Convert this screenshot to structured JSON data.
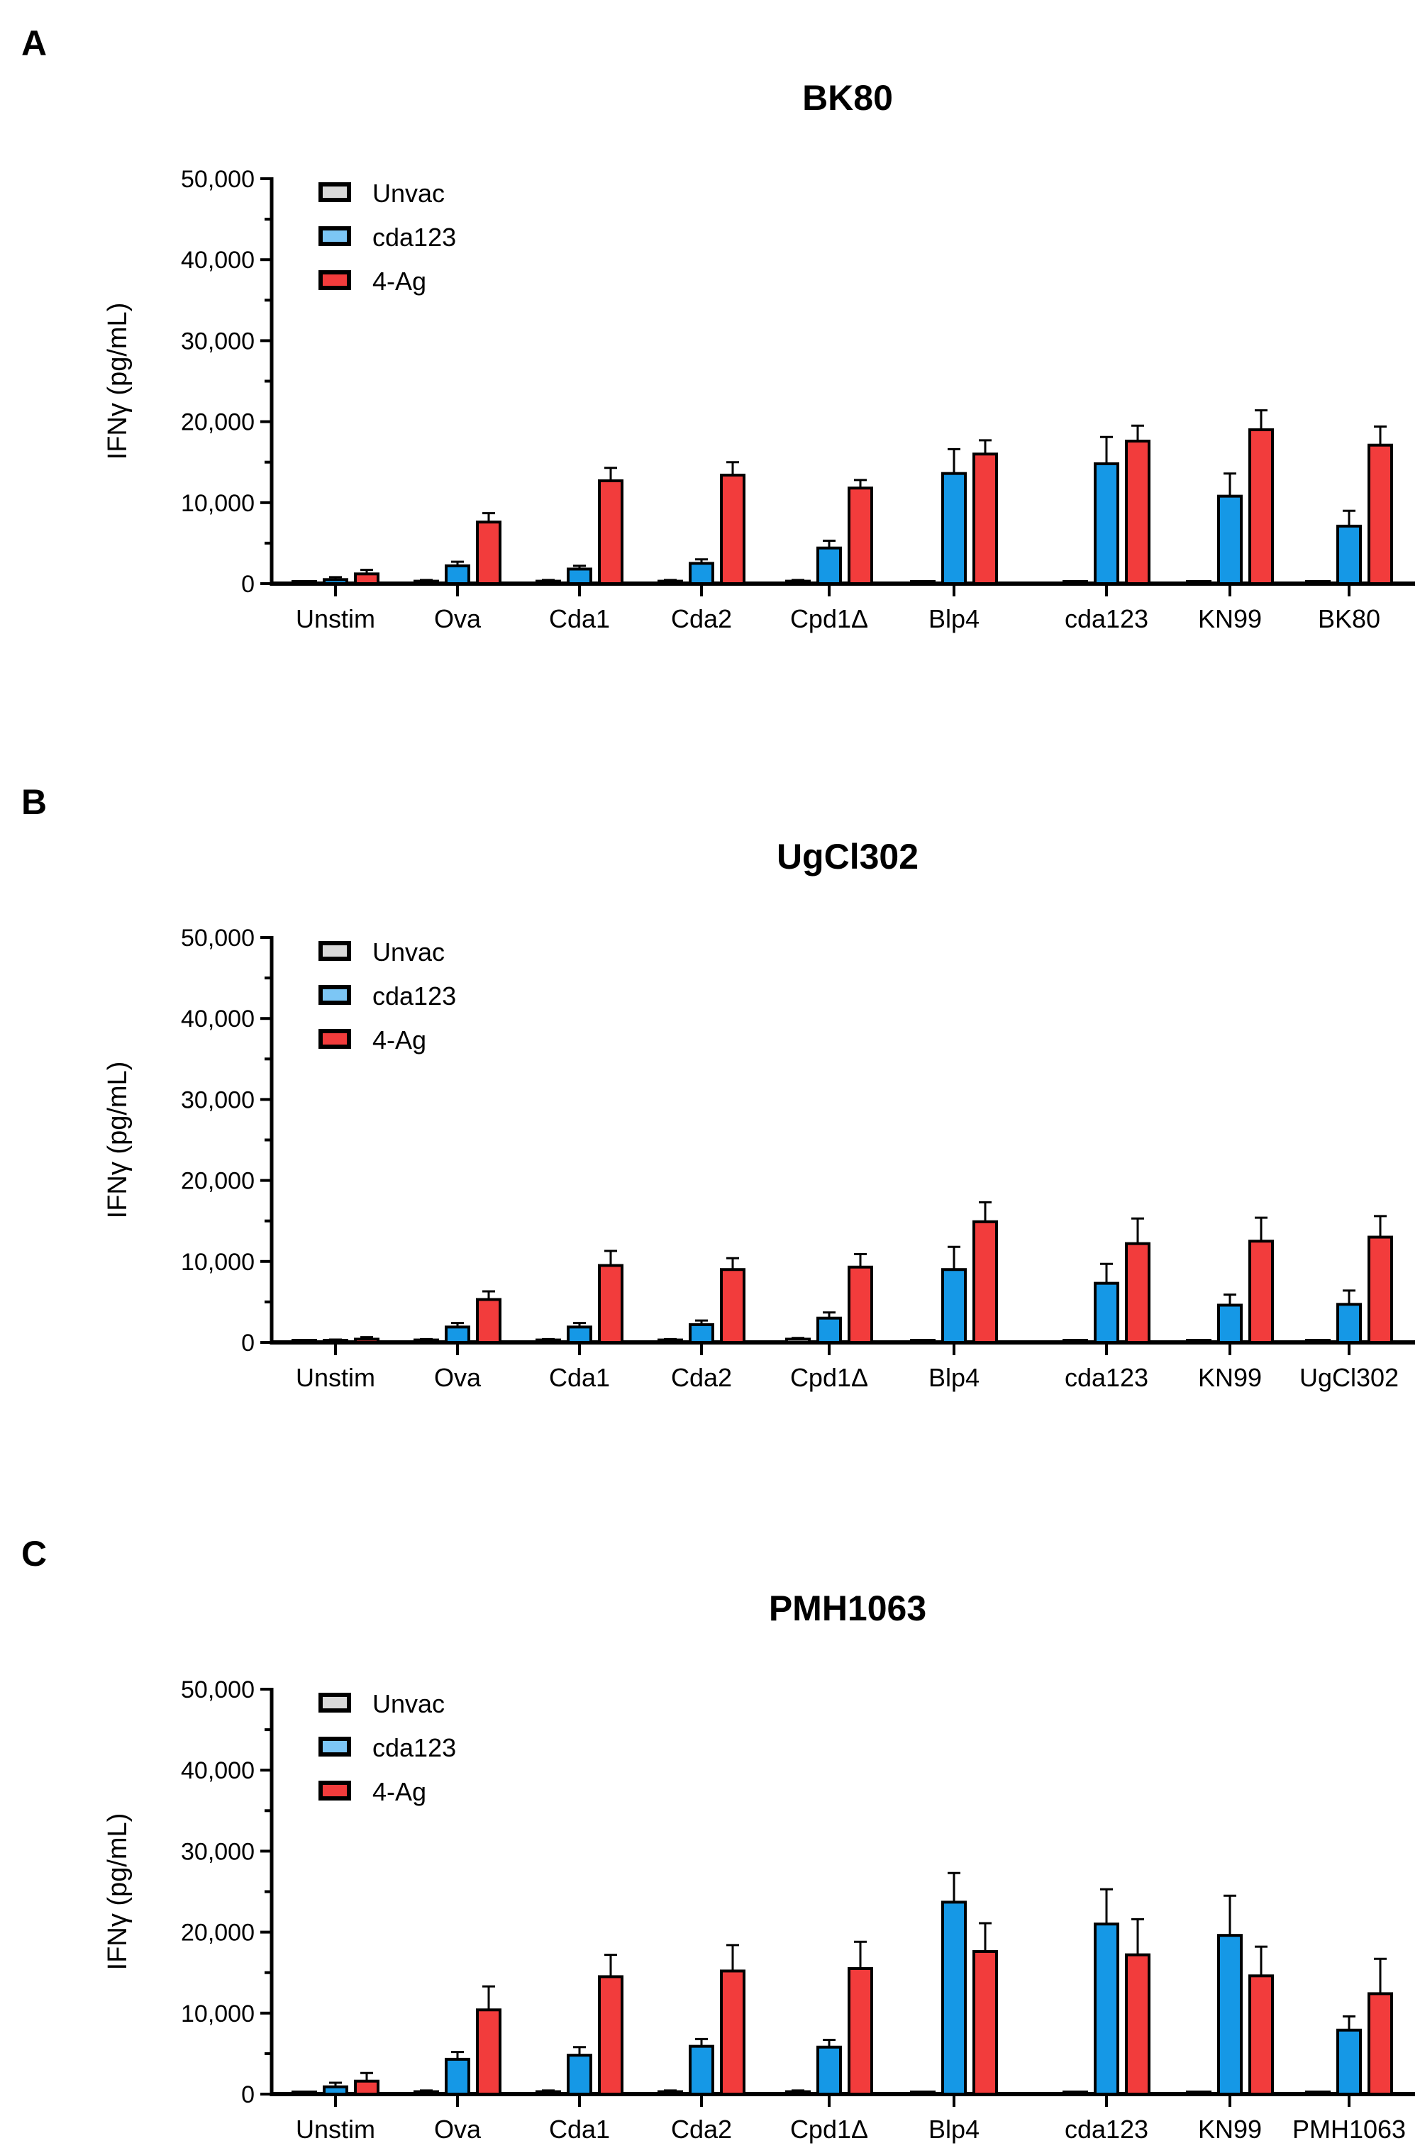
{
  "colors": {
    "Unvac": "#d9d9d9",
    "cda123": "#1598e6",
    "4-Ag": "#f23c3c",
    "cda123_legend": "#7cc6f5"
  },
  "chart_data": [
    {
      "type": "bar",
      "panel_label": "A",
      "title": "BK80",
      "ylabel": "IFNγ (pg/mL)",
      "xlabel": "",
      "ylim": [
        0,
        50000
      ],
      "yticks": [
        0,
        10000,
        20000,
        30000,
        40000,
        50000
      ],
      "ytick_labels": [
        "0",
        "10,000",
        "20,000",
        "30,000",
        "40,000",
        "50,000"
      ],
      "legend": "top-left",
      "categories": [
        "Unstim",
        "Ova",
        "Cda1",
        "Cda2",
        "Cpd1Δ",
        "Blp4",
        "cda123",
        "KN99",
        "BK80"
      ],
      "series": [
        {
          "name": "Unvac",
          "values": [
            100,
            300,
            300,
            300,
            300,
            200,
            200,
            200,
            200
          ],
          "errors": [
            50,
            150,
            150,
            150,
            150,
            100,
            100,
            100,
            100
          ]
        },
        {
          "name": "cda123",
          "values": [
            500,
            2200,
            1800,
            2500,
            4400,
            13600,
            14800,
            10800,
            7100
          ],
          "errors": [
            300,
            500,
            400,
            500,
            900,
            3000,
            3300,
            2800,
            1900
          ]
        },
        {
          "name": "4-Ag",
          "values": [
            1200,
            7600,
            12700,
            13400,
            11800,
            16000,
            17600,
            19000,
            17100
          ],
          "errors": [
            500,
            1100,
            1600,
            1600,
            1000,
            1700,
            1900,
            2400,
            2300
          ]
        }
      ]
    },
    {
      "type": "bar",
      "panel_label": "B",
      "title": "UgCl302",
      "ylabel": "IFNγ (pg/mL)",
      "xlabel": "",
      "ylim": [
        0,
        50000
      ],
      "yticks": [
        0,
        10000,
        20000,
        30000,
        40000,
        50000
      ],
      "ytick_labels": [
        "0",
        "10,000",
        "20,000",
        "30,000",
        "40,000",
        "50,000"
      ],
      "legend": "top-left",
      "categories": [
        "Unstim",
        "Ova",
        "Cda1",
        "Cda2",
        "Cpd1Δ",
        "Blp4",
        "cda123",
        "KN99",
        "UgCl302"
      ],
      "series": [
        {
          "name": "Unvac",
          "values": [
            100,
            300,
            300,
            300,
            400,
            200,
            100,
            100,
            100
          ],
          "errors": [
            50,
            100,
            100,
            100,
            150,
            100,
            50,
            50,
            50
          ]
        },
        {
          "name": "cda123",
          "values": [
            200,
            1900,
            1900,
            2200,
            3000,
            9000,
            7300,
            4600,
            4700
          ],
          "errors": [
            150,
            500,
            500,
            500,
            700,
            2800,
            2400,
            1300,
            1700
          ]
        },
        {
          "name": "4-Ag",
          "values": [
            400,
            5300,
            9500,
            9000,
            9300,
            14900,
            12200,
            12500,
            13000
          ],
          "errors": [
            250,
            1000,
            1800,
            1400,
            1600,
            2400,
            3100,
            2900,
            2600
          ]
        }
      ]
    },
    {
      "type": "bar",
      "panel_label": "C",
      "title": "PMH1063",
      "ylabel": "IFNγ (pg/mL)",
      "xlabel": "",
      "ylim": [
        0,
        50000
      ],
      "yticks": [
        0,
        10000,
        20000,
        30000,
        40000,
        50000
      ],
      "ytick_labels": [
        "0",
        "10,000",
        "20,000",
        "30,000",
        "40,000",
        "50,000"
      ],
      "legend": "top-left",
      "categories": [
        "Unstim",
        "Ova",
        "Cda1",
        "Cda2",
        "Cpd1Δ",
        "Blp4",
        "cda123",
        "KN99",
        "PMH1063"
      ],
      "series": [
        {
          "name": "Unvac",
          "values": [
            100,
            300,
            300,
            300,
            300,
            200,
            200,
            200,
            100
          ],
          "errors": [
            50,
            150,
            150,
            150,
            150,
            100,
            100,
            100,
            50
          ]
        },
        {
          "name": "cda123",
          "values": [
            900,
            4300,
            4800,
            5900,
            5800,
            23700,
            21000,
            19600,
            7900
          ],
          "errors": [
            500,
            900,
            1000,
            900,
            900,
            3600,
            4300,
            4900,
            1700
          ]
        },
        {
          "name": "4-Ag",
          "values": [
            1600,
            10400,
            14500,
            15200,
            15500,
            17600,
            17200,
            14600,
            12400
          ],
          "errors": [
            1000,
            2900,
            2700,
            3200,
            3300,
            3500,
            4400,
            3600,
            4300
          ]
        }
      ]
    }
  ]
}
